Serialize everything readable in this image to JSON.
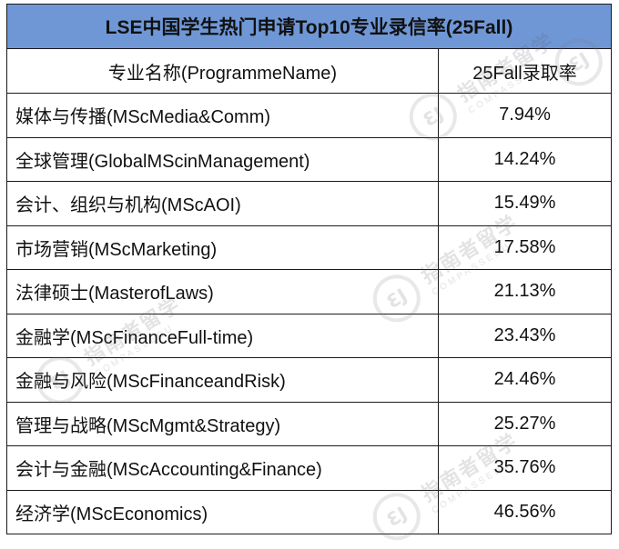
{
  "table": {
    "title": "LSE中国学生热门申请Top10专业录信率(25Fall)",
    "header": {
      "col1": "专业名称(ProgrammeName)",
      "col2": "25Fall录取率"
    },
    "rows": [
      {
        "name": "媒体与传播(MScMedia&Comm)",
        "rate": "7.94%"
      },
      {
        "name": "全球管理(GlobalMScinManagement)",
        "rate": "14.24%"
      },
      {
        "name": "会计、组织与机构(MScAOI)",
        "rate": "15.49%"
      },
      {
        "name": "市场营销(MScMarketing)",
        "rate": "17.58%"
      },
      {
        "name": "法律硕士(MasterofLaws)",
        "rate": "21.13%"
      },
      {
        "name": "金融学(MScFinanceFull-time)",
        "rate": "23.43%"
      },
      {
        "name": "金融与风险(MScFinanceandRisk)",
        "rate": "24.46%"
      },
      {
        "name": "管理与战略(MScMgmt&Strategy)",
        "rate": "25.27%"
      },
      {
        "name": "会计与金融(MScAccounting&Finance)",
        "rate": "35.76%"
      },
      {
        "name": "经济学(MScEconomics)",
        "rate": "46.56%"
      }
    ]
  },
  "watermark": {
    "logo_text": "ƐJ",
    "cn": "指南者留学",
    "en": "COMPASSEDU"
  },
  "colors": {
    "title_bg": "#6f97d6",
    "border": "#1a1a1a"
  }
}
